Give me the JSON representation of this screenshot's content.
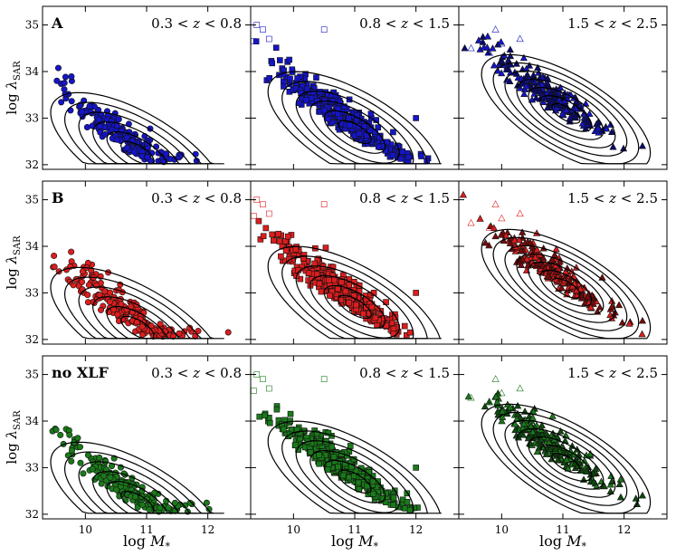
{
  "chart_data": {
    "type": "scatter",
    "layout": "3x3 grid",
    "xlabel_text": "log M",
    "xlabel_sub": "*",
    "ylabel_text": "log λ",
    "ylabel_sub": "SAR",
    "xlim": [
      9.3,
      12.7
    ],
    "ylim": [
      31.9,
      35.4
    ],
    "xticks": [
      10,
      11,
      12
    ],
    "yticks": [
      32,
      33,
      34,
      35
    ],
    "grid": false,
    "columns": [
      {
        "z_label": "0.3 < z < 0.8",
        "z_low": "0.3",
        "z_high": "0.8",
        "marker": "circle"
      },
      {
        "z_label": "0.8 < z < 1.5",
        "z_low": "0.8",
        "z_high": "1.5",
        "marker": "square"
      },
      {
        "z_label": "1.5 < z < 2.5",
        "z_low": "1.5",
        "z_high": "2.5",
        "marker": "triangle"
      }
    ],
    "rows": [
      {
        "label": "A",
        "color": "#1515c8",
        "dark_color": "#0a0a6e"
      },
      {
        "label": "B",
        "color": "#dc1e1e",
        "dark_color": "#7a0a0a"
      },
      {
        "label": "no XLF",
        "color": "#1a7a1a",
        "dark_color": "#0d4a0d"
      }
    ],
    "contours": [
      {
        "column": 0,
        "center": [
          10.85,
          32.25
        ],
        "levels": [
          0.35,
          0.65,
          0.95,
          1.25,
          1.55,
          1.85
        ]
      },
      {
        "column": 1,
        "center": [
          11.0,
          32.7
        ],
        "levels": [
          0.35,
          0.65,
          0.95,
          1.25,
          1.55,
          1.85
        ]
      },
      {
        "column": 2,
        "center": [
          11.05,
          33.1
        ],
        "levels": [
          0.3,
          0.55,
          0.8,
          1.05,
          1.3,
          1.55,
          1.8
        ]
      }
    ],
    "open_points": [
      [],
      [
        [
          9.4,
          35.0
        ],
        [
          9.5,
          34.9
        ],
        [
          10.5,
          34.9
        ],
        [
          9.35,
          34.65
        ],
        [
          9.6,
          34.7
        ]
      ],
      [
        [
          9.9,
          34.9
        ],
        [
          10.3,
          34.7
        ],
        [
          9.5,
          34.5
        ],
        [
          10.0,
          34.6
        ],
        [
          9.8,
          34.4
        ]
      ]
    ],
    "outliers": [
      [],
      [
        [
          12.0,
          33.0
        ]
      ],
      [
        [
          12.3,
          32.4
        ],
        [
          11.8,
          32.7
        ]
      ]
    ],
    "series_points": [
      200,
      360,
      240
    ]
  }
}
